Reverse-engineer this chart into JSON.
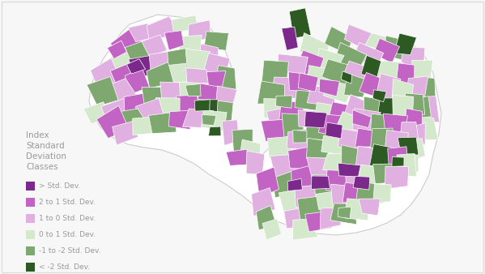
{
  "legend_title_lines": [
    "Index",
    "Standard",
    "Deviation",
    "Classes"
  ],
  "legend_labels": [
    "> Std. Dev.",
    "2 to 1 Std. Dev.",
    "1 to 0 Std. Dev.",
    "0 to 1 Std. Dev.",
    "-1 to -2 Std. Dev.",
    "< -2 Std. Dev."
  ],
  "legend_colors": [
    "#7B2A8B",
    "#C264C4",
    "#DFB0E0",
    "#D4E8CB",
    "#7EA870",
    "#2D5A22"
  ],
  "background_color": "#F7F7F7",
  "text_color": "#999999",
  "fig_width": 5.99,
  "fig_height": 3.38,
  "dpi": 100
}
